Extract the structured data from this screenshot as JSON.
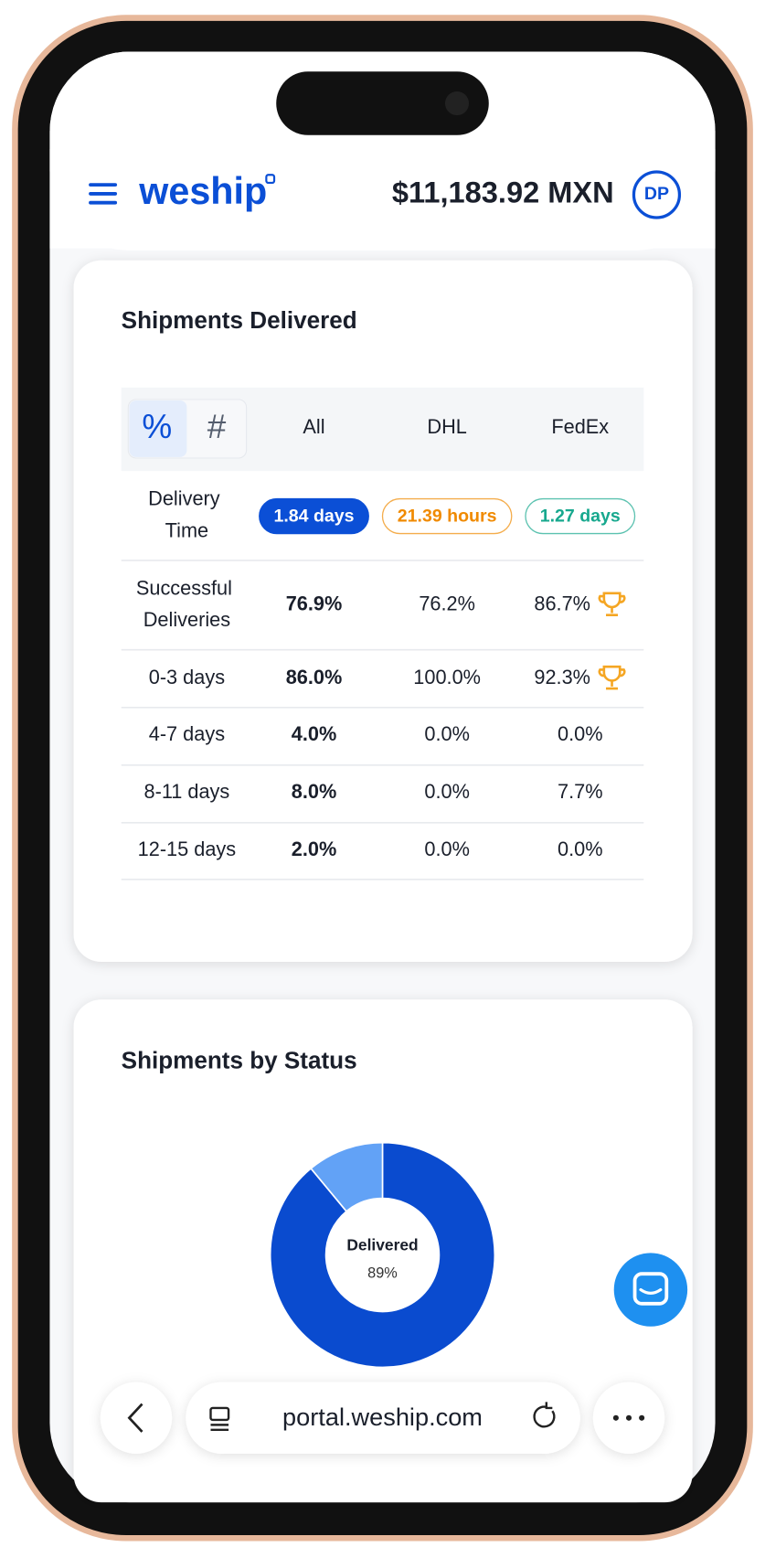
{
  "header": {
    "logo": "weship",
    "balance": "$11,183.92 MXN",
    "avatar": "DP"
  },
  "delivered_card": {
    "title": "Shipments Delivered",
    "toggles": [
      "%",
      "#"
    ],
    "columns": [
      "All",
      "DHL",
      "FedEx"
    ],
    "delivery_time": {
      "label": "Delivery Time",
      "values": [
        "1.84 days",
        "21.39 hours",
        "1.27 days"
      ],
      "colors": [
        "#0b4fd6",
        "#f08a00",
        "#17a88e"
      ]
    },
    "rows": [
      {
        "label": "Successful Deliveries",
        "values": [
          "76.9%",
          "76.2%",
          "86.7%"
        ],
        "trophy": 2
      },
      {
        "label": "0-3 days",
        "values": [
          "86.0%",
          "100.0%",
          "92.3%"
        ],
        "trophy": 2
      },
      {
        "label": "4-7 days",
        "values": [
          "4.0%",
          "0.0%",
          "0.0%"
        ]
      },
      {
        "label": "8-11 days",
        "values": [
          "8.0%",
          "0.0%",
          "7.7%"
        ]
      },
      {
        "label": "12-15 days",
        "values": [
          "2.0%",
          "0.0%",
          "0.0%"
        ]
      }
    ]
  },
  "status_card": {
    "title": "Shipments by Status",
    "chart_data": {
      "type": "donut",
      "center_label": "Delivered",
      "values": [
        89,
        11
      ],
      "value_labels": [
        "89%"
      ],
      "colors": [
        "#0a4bcf",
        "#62a2f6"
      ]
    }
  },
  "browser": {
    "url": "portal.weship.com"
  }
}
